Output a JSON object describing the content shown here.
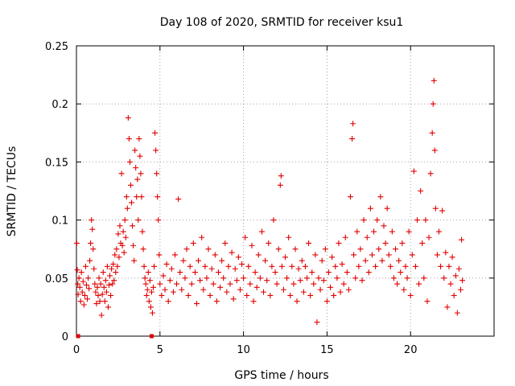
{
  "chart_data": {
    "type": "scatter",
    "title": "Day 108 of 2020, SRMTID for receiver ksu1",
    "xlabel": "GPS time / hours",
    "ylabel": "SRMTID / TECUs",
    "xlim": [
      0,
      25
    ],
    "ylim": [
      0,
      0.25
    ],
    "grid": true,
    "x_ticks": [
      0,
      5,
      10,
      15,
      20
    ],
    "x_tick_labels": [
      "0",
      "5",
      "10",
      "15",
      "20"
    ],
    "y_ticks": [
      0,
      0.05,
      0.1,
      0.15,
      0.2,
      0.25
    ],
    "y_tick_labels": [
      "0",
      "0.05",
      "0.1",
      "0.15",
      "0.2",
      "0.25"
    ],
    "marker": "+",
    "marker_color": "#e00000",
    "series": [
      {
        "name": "SRMTID",
        "points": [
          [
            0.02,
            0.08
          ],
          [
            0.05,
            0.057
          ],
          [
            0.08,
            0.045
          ],
          [
            0.1,
            0.036
          ],
          [
            0.15,
            0.05
          ],
          [
            0.2,
            0.042
          ],
          [
            0.25,
            0.03
          ],
          [
            0.3,
            0.055
          ],
          [
            0.35,
            0.038
          ],
          [
            0.4,
            0.047
          ],
          [
            0.45,
            0.027
          ],
          [
            0.5,
            0.035
          ],
          [
            0.55,
            0.06
          ],
          [
            0.6,
            0.044
          ],
          [
            0.65,
            0.032
          ],
          [
            0.7,
            0.05
          ],
          [
            0.75,
            0.041
          ],
          [
            0.8,
            0.065
          ],
          [
            0.85,
            0.08
          ],
          [
            0.9,
            0.1
          ],
          [
            0.95,
            0.092
          ],
          [
            1.0,
            0.075
          ],
          [
            1.05,
            0.058
          ],
          [
            1.1,
            0.045
          ],
          [
            1.15,
            0.038
          ],
          [
            1.2,
            0.028
          ],
          [
            1.25,
            0.042
          ],
          [
            1.3,
            0.035
          ],
          [
            1.35,
            0.05
          ],
          [
            1.4,
            0.03
          ],
          [
            1.45,
            0.045
          ],
          [
            1.5,
            0.018
          ],
          [
            1.55,
            0.036
          ],
          [
            1.6,
            0.055
          ],
          [
            1.65,
            0.042
          ],
          [
            1.7,
            0.03
          ],
          [
            1.75,
            0.048
          ],
          [
            1.8,
            0.038
          ],
          [
            1.85,
            0.06
          ],
          [
            1.9,
            0.025
          ],
          [
            1.95,
            0.044
          ],
          [
            2.0,
            0.052
          ],
          [
            2.05,
            0.035
          ],
          [
            2.1,
            0.058
          ],
          [
            2.15,
            0.045
          ],
          [
            2.2,
            0.062
          ],
          [
            2.25,
            0.048
          ],
          [
            2.3,
            0.07
          ],
          [
            2.35,
            0.055
          ],
          [
            2.4,
            0.075
          ],
          [
            2.45,
            0.06
          ],
          [
            2.5,
            0.088
          ],
          [
            2.55,
            0.068
          ],
          [
            2.6,
            0.095
          ],
          [
            2.65,
            0.08
          ],
          [
            2.7,
            0.14
          ],
          [
            2.75,
            0.078
          ],
          [
            2.8,
            0.09
          ],
          [
            2.85,
            0.072
          ],
          [
            2.9,
            0.1
          ],
          [
            2.95,
            0.085
          ],
          [
            3.0,
            0.12
          ],
          [
            3.05,
            0.11
          ],
          [
            3.1,
            0.188
          ],
          [
            3.15,
            0.17
          ],
          [
            3.2,
            0.15
          ],
          [
            3.25,
            0.13
          ],
          [
            3.3,
            0.115
          ],
          [
            3.35,
            0.095
          ],
          [
            3.4,
            0.078
          ],
          [
            3.45,
            0.065
          ],
          [
            3.5,
            0.16
          ],
          [
            3.55,
            0.145
          ],
          [
            3.6,
            0.12
          ],
          [
            3.65,
            0.135
          ],
          [
            3.7,
            0.1
          ],
          [
            3.75,
            0.17
          ],
          [
            3.8,
            0.155
          ],
          [
            3.85,
            0.14
          ],
          [
            3.9,
            0.12
          ],
          [
            3.95,
            0.09
          ],
          [
            4.0,
            0.075
          ],
          [
            4.05,
            0.06
          ],
          [
            4.1,
            0.05
          ],
          [
            4.15,
            0.045
          ],
          [
            4.2,
            0.035
          ],
          [
            4.25,
            0.04
          ],
          [
            4.3,
            0.055
          ],
          [
            4.35,
            0.03
          ],
          [
            4.4,
            0.048
          ],
          [
            4.45,
            0.025
          ],
          [
            4.5,
            0.038
          ],
          [
            4.55,
            0.02
          ],
          [
            4.6,
            0.042
          ],
          [
            4.65,
            0.06
          ],
          [
            4.7,
            0.175
          ],
          [
            4.75,
            0.16
          ],
          [
            4.8,
            0.14
          ],
          [
            4.85,
            0.12
          ],
          [
            4.9,
            0.1
          ],
          [
            4.95,
            0.07
          ],
          [
            5.0,
            0.045
          ],
          [
            5.1,
            0.035
          ],
          [
            5.2,
            0.052
          ],
          [
            5.3,
            0.04
          ],
          [
            5.4,
            0.062
          ],
          [
            5.5,
            0.03
          ],
          [
            5.6,
            0.048
          ],
          [
            5.7,
            0.058
          ],
          [
            5.8,
            0.038
          ],
          [
            5.9,
            0.07
          ],
          [
            6.0,
            0.045
          ],
          [
            6.1,
            0.118
          ],
          [
            6.2,
            0.055
          ],
          [
            6.3,
            0.04
          ],
          [
            6.4,
            0.065
          ],
          [
            6.5,
            0.05
          ],
          [
            6.6,
            0.075
          ],
          [
            6.7,
            0.035
          ],
          [
            6.8,
            0.06
          ],
          [
            6.9,
            0.045
          ],
          [
            7.0,
            0.08
          ],
          [
            7.1,
            0.055
          ],
          [
            7.2,
            0.028
          ],
          [
            7.3,
            0.065
          ],
          [
            7.4,
            0.048
          ],
          [
            7.5,
            0.085
          ],
          [
            7.6,
            0.04
          ],
          [
            7.7,
            0.06
          ],
          [
            7.8,
            0.05
          ],
          [
            7.9,
            0.075
          ],
          [
            8.0,
            0.035
          ],
          [
            8.1,
            0.058
          ],
          [
            8.2,
            0.045
          ],
          [
            8.3,
            0.07
          ],
          [
            8.4,
            0.03
          ],
          [
            8.5,
            0.055
          ],
          [
            8.6,
            0.042
          ],
          [
            8.7,
            0.065
          ],
          [
            8.8,
            0.05
          ],
          [
            8.9,
            0.08
          ],
          [
            9.0,
            0.038
          ],
          [
            9.1,
            0.06
          ],
          [
            9.2,
            0.045
          ],
          [
            9.3,
            0.072
          ],
          [
            9.4,
            0.032
          ],
          [
            9.5,
            0.058
          ],
          [
            9.6,
            0.048
          ],
          [
            9.7,
            0.068
          ],
          [
            9.8,
            0.04
          ],
          [
            9.9,
            0.062
          ],
          [
            10.0,
            0.05
          ],
          [
            10.1,
            0.085
          ],
          [
            10.2,
            0.035
          ],
          [
            10.3,
            0.06
          ],
          [
            10.4,
            0.045
          ],
          [
            10.5,
            0.078
          ],
          [
            10.6,
            0.03
          ],
          [
            10.7,
            0.055
          ],
          [
            10.8,
            0.042
          ],
          [
            10.9,
            0.07
          ],
          [
            11.0,
            0.05
          ],
          [
            11.1,
            0.09
          ],
          [
            11.2,
            0.038
          ],
          [
            11.3,
            0.065
          ],
          [
            11.4,
            0.048
          ],
          [
            11.5,
            0.08
          ],
          [
            11.6,
            0.035
          ],
          [
            11.7,
            0.06
          ],
          [
            11.8,
            0.1
          ],
          [
            11.9,
            0.055
          ],
          [
            12.0,
            0.045
          ],
          [
            12.1,
            0.075
          ],
          [
            12.2,
            0.13
          ],
          [
            12.25,
            0.138
          ],
          [
            12.3,
            0.06
          ],
          [
            12.4,
            0.04
          ],
          [
            12.5,
            0.068
          ],
          [
            12.6,
            0.05
          ],
          [
            12.7,
            0.085
          ],
          [
            12.8,
            0.035
          ],
          [
            12.9,
            0.06
          ],
          [
            13.0,
            0.045
          ],
          [
            13.1,
            0.075
          ],
          [
            13.2,
            0.03
          ],
          [
            13.3,
            0.058
          ],
          [
            13.4,
            0.048
          ],
          [
            13.5,
            0.065
          ],
          [
            13.6,
            0.038
          ],
          [
            13.7,
            0.06
          ],
          [
            13.8,
            0.05
          ],
          [
            13.9,
            0.08
          ],
          [
            14.0,
            0.035
          ],
          [
            14.1,
            0.055
          ],
          [
            14.2,
            0.045
          ],
          [
            14.3,
            0.07
          ],
          [
            14.4,
            0.012
          ],
          [
            14.5,
            0.05
          ],
          [
            14.6,
            0.04
          ],
          [
            14.7,
            0.065
          ],
          [
            14.8,
            0.048
          ],
          [
            14.9,
            0.075
          ],
          [
            15.0,
            0.03
          ],
          [
            15.1,
            0.055
          ],
          [
            15.2,
            0.042
          ],
          [
            15.3,
            0.068
          ],
          [
            15.4,
            0.035
          ],
          [
            15.5,
            0.06
          ],
          [
            15.6,
            0.05
          ],
          [
            15.7,
            0.08
          ],
          [
            15.8,
            0.038
          ],
          [
            15.9,
            0.062
          ],
          [
            16.0,
            0.045
          ],
          [
            16.1,
            0.085
          ],
          [
            16.2,
            0.055
          ],
          [
            16.3,
            0.04
          ],
          [
            16.4,
            0.12
          ],
          [
            16.5,
            0.17
          ],
          [
            16.55,
            0.183
          ],
          [
            16.6,
            0.07
          ],
          [
            16.7,
            0.05
          ],
          [
            16.8,
            0.09
          ],
          [
            16.9,
            0.06
          ],
          [
            17.0,
            0.075
          ],
          [
            17.1,
            0.048
          ],
          [
            17.2,
            0.1
          ],
          [
            17.3,
            0.065
          ],
          [
            17.4,
            0.085
          ],
          [
            17.5,
            0.055
          ],
          [
            17.6,
            0.11
          ],
          [
            17.7,
            0.07
          ],
          [
            17.8,
            0.09
          ],
          [
            17.9,
            0.06
          ],
          [
            18.0,
            0.1
          ],
          [
            18.1,
            0.075
          ],
          [
            18.2,
            0.12
          ],
          [
            18.3,
            0.065
          ],
          [
            18.4,
            0.095
          ],
          [
            18.5,
            0.08
          ],
          [
            18.6,
            0.11
          ],
          [
            18.7,
            0.07
          ],
          [
            18.8,
            0.06
          ],
          [
            18.9,
            0.09
          ],
          [
            19.0,
            0.05
          ],
          [
            19.1,
            0.075
          ],
          [
            19.2,
            0.045
          ],
          [
            19.3,
            0.065
          ],
          [
            19.4,
            0.055
          ],
          [
            19.5,
            0.08
          ],
          [
            19.6,
            0.04
          ],
          [
            19.7,
            0.06
          ],
          [
            19.8,
            0.05
          ],
          [
            19.9,
            0.09
          ],
          [
            20.0,
            0.035
          ],
          [
            20.1,
            0.07
          ],
          [
            20.2,
            0.142
          ],
          [
            20.3,
            0.06
          ],
          [
            20.4,
            0.1
          ],
          [
            20.5,
            0.045
          ],
          [
            20.6,
            0.125
          ],
          [
            20.7,
            0.08
          ],
          [
            20.8,
            0.05
          ],
          [
            20.9,
            0.1
          ],
          [
            21.0,
            0.03
          ],
          [
            21.1,
            0.085
          ],
          [
            21.2,
            0.14
          ],
          [
            21.3,
            0.175
          ],
          [
            21.35,
            0.2
          ],
          [
            21.4,
            0.22
          ],
          [
            21.45,
            0.16
          ],
          [
            21.5,
            0.11
          ],
          [
            21.6,
            0.07
          ],
          [
            21.7,
            0.09
          ],
          [
            21.8,
            0.06
          ],
          [
            21.9,
            0.108
          ],
          [
            22.0,
            0.05
          ],
          [
            22.1,
            0.072
          ],
          [
            22.2,
            0.025
          ],
          [
            22.3,
            0.06
          ],
          [
            22.4,
            0.045
          ],
          [
            22.5,
            0.068
          ],
          [
            22.6,
            0.035
          ],
          [
            22.7,
            0.052
          ],
          [
            22.8,
            0.02
          ],
          [
            22.9,
            0.058
          ],
          [
            23.0,
            0.04
          ],
          [
            23.05,
            0.083
          ],
          [
            23.1,
            0.048
          ]
        ],
        "zero_markers": [
          0.1,
          4.5
        ]
      }
    ]
  }
}
